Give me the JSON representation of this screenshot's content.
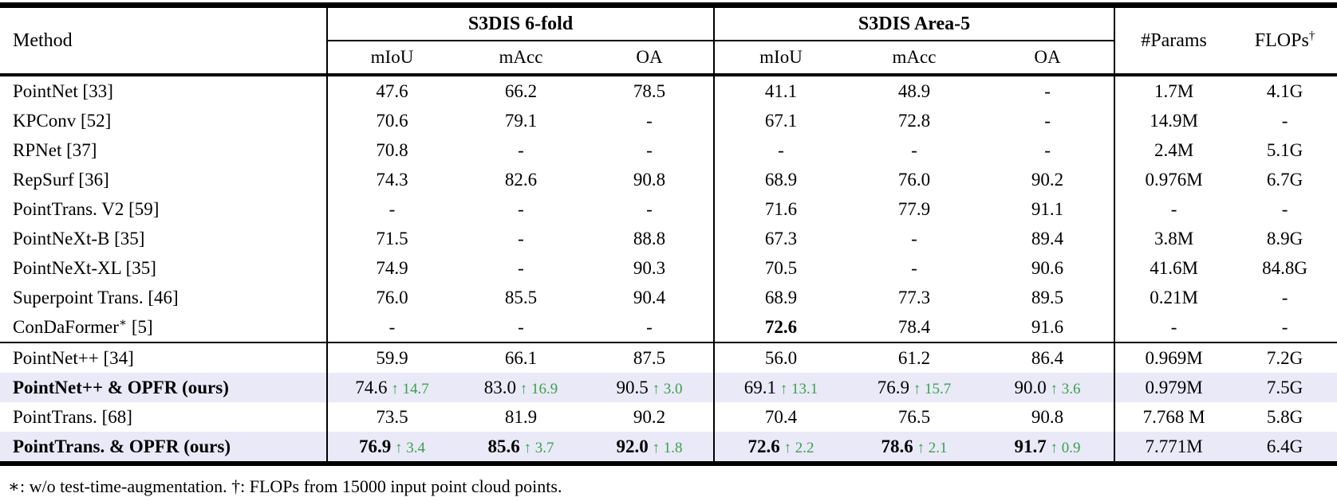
{
  "table": {
    "header": {
      "method_label": "Method",
      "groups": [
        {
          "label": "S3DIS 6-fold",
          "cols": [
            "mIoU",
            "mAcc",
            "OA"
          ]
        },
        {
          "label": "S3DIS Area-5",
          "cols": [
            "mIoU",
            "mAcc",
            "OA"
          ]
        }
      ],
      "params_label": "#Params",
      "flops_label": "FLOPs",
      "flops_sup": "†"
    },
    "rows": [
      {
        "method": "PointNet [33]",
        "cells": [
          "47.6",
          "66.2",
          "78.5",
          "41.1",
          "48.9",
          "-",
          "1.7M",
          "4.1G"
        ]
      },
      {
        "method": "KPConv [52]",
        "cells": [
          "70.6",
          "79.1",
          "-",
          "67.1",
          "72.8",
          "-",
          "14.9M",
          "-"
        ]
      },
      {
        "method": "RPNet [37]",
        "cells": [
          "70.8",
          "-",
          "-",
          "-",
          "-",
          "-",
          "2.4M",
          "5.1G"
        ]
      },
      {
        "method": "RepSurf [36]",
        "cells": [
          "74.3",
          "82.6",
          "90.8",
          "68.9",
          "76.0",
          "90.2",
          "0.976M",
          "6.7G"
        ]
      },
      {
        "method": "PointTrans. V2 [59]",
        "cells": [
          "-",
          "-",
          "-",
          "71.6",
          "77.9",
          "91.1",
          "-",
          "-"
        ]
      },
      {
        "method": "PointNeXt-B [35]",
        "cells": [
          "71.5",
          "-",
          "88.8",
          "67.3",
          "-",
          "89.4",
          "3.8M",
          "8.9G"
        ]
      },
      {
        "method": "PointNeXt-XL [35]",
        "cells": [
          "74.9",
          "-",
          "90.3",
          "70.5",
          "-",
          "90.6",
          "41.6M",
          "84.8G"
        ]
      },
      {
        "method": "Superpoint Trans. [46]",
        "cells": [
          "76.0",
          "85.5",
          "90.4",
          "68.9",
          "77.3",
          "89.5",
          "0.21M",
          "-"
        ]
      },
      {
        "method": "ConDaFormer",
        "method_sup": "∗",
        "method_post": " [5]",
        "cells": [
          "-",
          "-",
          "-",
          {
            "v": "72.6",
            "b": true
          },
          "78.4",
          "91.6",
          "-",
          "-"
        ]
      },
      {
        "method": "PointNet++ [34]",
        "sep": true,
        "cells": [
          "59.9",
          "66.1",
          "87.5",
          "56.0",
          "61.2",
          "86.4",
          "0.969M",
          "7.2G"
        ]
      },
      {
        "method": "PointNet++ & OPFR (ours)",
        "bold": true,
        "highlight": true,
        "cells": [
          {
            "v": "74.6",
            "up": "14.7"
          },
          {
            "v": "83.0",
            "up": "16.9"
          },
          {
            "v": "90.5",
            "up": "3.0"
          },
          {
            "v": "69.1",
            "up": "13.1"
          },
          {
            "v": "76.9",
            "up": "15.7"
          },
          {
            "v": "90.0",
            "up": "3.6"
          },
          "0.979M",
          "7.5G"
        ]
      },
      {
        "method": "PointTrans. [68]",
        "cells": [
          "73.5",
          "81.9",
          "90.2",
          "70.4",
          "76.5",
          "90.8",
          "7.768 M",
          "5.8G"
        ]
      },
      {
        "method": "PointTrans. & OPFR (ours)",
        "bold": true,
        "highlight": true,
        "cells": [
          {
            "v": "76.9",
            "b": true,
            "up": "3.4"
          },
          {
            "v": "85.6",
            "b": true,
            "up": "3.7"
          },
          {
            "v": "92.0",
            "b": true,
            "up": "1.8"
          },
          {
            "v": "72.6",
            "b": true,
            "up": "2.2"
          },
          {
            "v": "78.6",
            "b": true,
            "up": "2.1"
          },
          {
            "v": "91.7",
            "b": true,
            "up": "0.9"
          },
          "7.771M",
          "6.4G"
        ]
      }
    ],
    "footnote": "∗: w/o test-time-augmentation. †: FLOPs from 15000 input point cloud points."
  },
  "icons": {
    "up_arrow": "↑"
  },
  "colors": {
    "highlight_bg": "#e9e9f8",
    "delta_green": "#3aa24a"
  }
}
